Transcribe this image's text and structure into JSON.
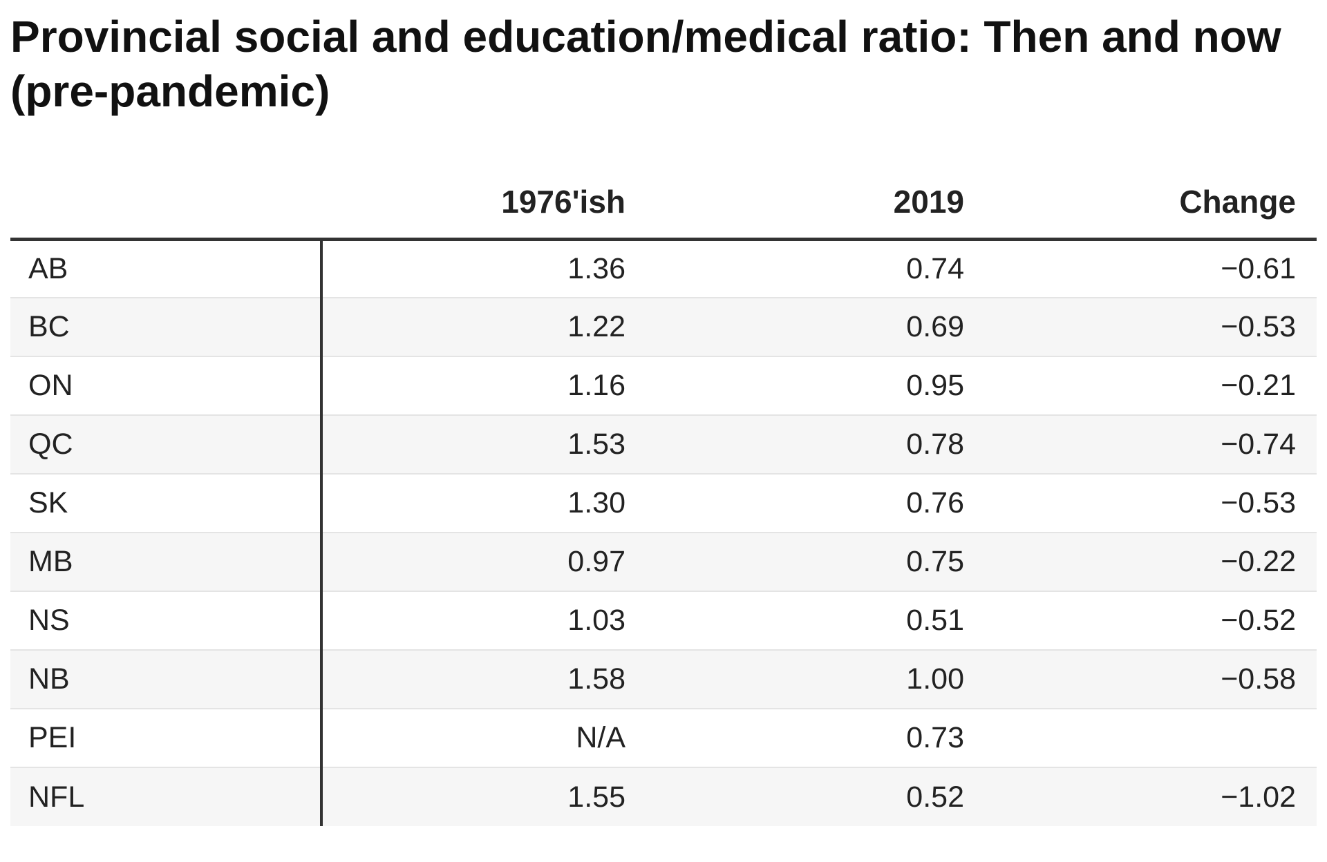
{
  "chart_data": {
    "type": "table",
    "title": "Provincial social and education/medical ratio:  Then and now (pre-pandemic)",
    "columns": [
      "",
      "1976'ish",
      "2019",
      "Change"
    ],
    "rows": [
      {
        "label": "AB",
        "then": "1.36",
        "now": "0.74",
        "change": "−0.61"
      },
      {
        "label": "BC",
        "then": "1.22",
        "now": "0.69",
        "change": "−0.53"
      },
      {
        "label": "ON",
        "then": "1.16",
        "now": "0.95",
        "change": "−0.21"
      },
      {
        "label": "QC",
        "then": "1.53",
        "now": "0.78",
        "change": "−0.74"
      },
      {
        "label": "SK",
        "then": "1.30",
        "now": "0.76",
        "change": "−0.53"
      },
      {
        "label": "MB",
        "then": "0.97",
        "now": "0.75",
        "change": "−0.22"
      },
      {
        "label": "NS",
        "then": "1.03",
        "now": "0.51",
        "change": "−0.52"
      },
      {
        "label": "NB",
        "then": "1.58",
        "now": "1.00",
        "change": "−0.58"
      },
      {
        "label": "PEI",
        "then": "N/A",
        "now": "0.73",
        "change": ""
      },
      {
        "label": "NFL",
        "then": "1.55",
        "now": "0.52",
        "change": "−1.02"
      }
    ],
    "colors": {
      "rule": "#333333",
      "stripe": "#f6f6f6",
      "row_border": "#e4e4e4"
    }
  }
}
